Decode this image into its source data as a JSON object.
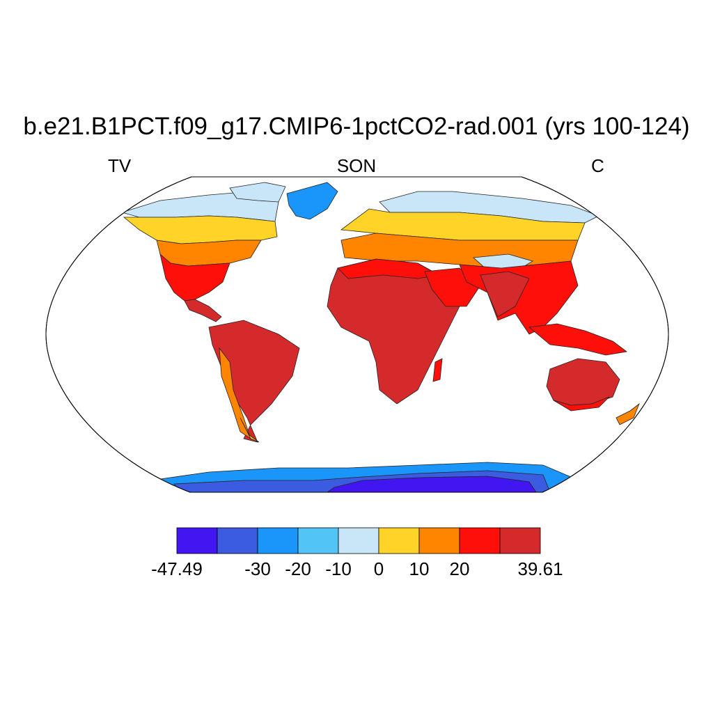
{
  "title": "b.e21.B1PCT.f09_g17.CMIP6-1pctCO2-rad.001 (yrs 100-124)",
  "left_label": "TV",
  "center_label": "SON",
  "right_label": "C",
  "colorbar": {
    "colors": [
      "#4216f0",
      "#3b5ce0",
      "#1a96fa",
      "#52c4f5",
      "#c8e6f7",
      "#ffd327",
      "#ff8400",
      "#ff0f0a",
      "#d42a2b"
    ],
    "labels": [
      "-47.49",
      "-30",
      "-20",
      "-10",
      "0",
      "10",
      "20",
      "39.61"
    ],
    "label_boundary_index": [
      0,
      2,
      3,
      4,
      5,
      6,
      7,
      9
    ]
  },
  "colors": {
    "ocean": "#ffffff",
    "coast": "#000000"
  }
}
